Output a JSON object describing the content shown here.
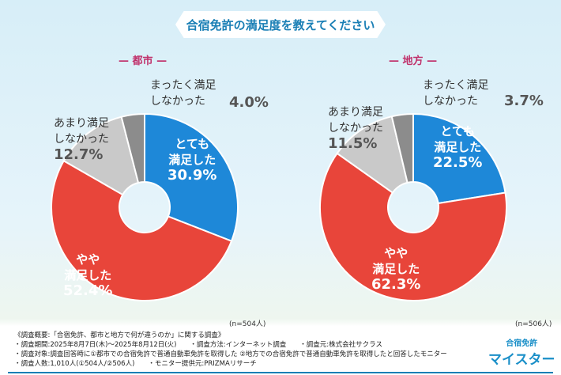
{
  "title": "合宿免許の満足度を教えてください",
  "colors": {
    "very": "#1e88d8",
    "somewhat": "#e8453a",
    "notmuch": "#c9c9c9",
    "notatall": "#8c8c8c"
  },
  "chart_data": [
    {
      "type": "pie",
      "title": "都市",
      "n_label": "(n=504人)",
      "categories": [
        "とても満足した",
        "やや満足した",
        "あまり満足しなかった",
        "まったく満足しなかった"
      ],
      "values": [
        30.9,
        52.4,
        12.7,
        4.0
      ],
      "value_labels": [
        "30.9%",
        "52.4%",
        "12.7%",
        "4.0%"
      ]
    },
    {
      "type": "pie",
      "title": "地方",
      "n_label": "(n=506人)",
      "categories": [
        "とても満足した",
        "やや満足した",
        "あまり満足しなかった",
        "まったく満足しなかった"
      ],
      "values": [
        22.5,
        62.3,
        11.5,
        3.7
      ],
      "value_labels": [
        "22.5%",
        "62.3%",
        "11.5%",
        "3.7%"
      ]
    }
  ],
  "labels": {
    "very": [
      "とても",
      "満足した"
    ],
    "somewhat": [
      "やや",
      "満足した"
    ],
    "notmuch": [
      "あまり満足",
      "しなかった"
    ],
    "notatall": [
      "まったく満足",
      "しなかった"
    ]
  },
  "footer": [
    "《調査概要:「合宿免許、都市と地方で何が違うのか」に関する調査》",
    "・調査期間:2025年8月7日(木)〜2025年8月12日(火)　　・調査方法:インターネット調査　　・調査元:株式会社サクラス",
    "・調査対象:調査回答時に①都市での合宿免許で普通自動車免許を取得した ②地方での合宿免許で普通自動車免許を取得したと回答したモニター",
    "・調査人数:1,010人(①504人/②506人)　　・モニター提供元:PRIZMAリサーチ"
  ],
  "logo": [
    "合宿免許",
    "マイスター"
  ]
}
